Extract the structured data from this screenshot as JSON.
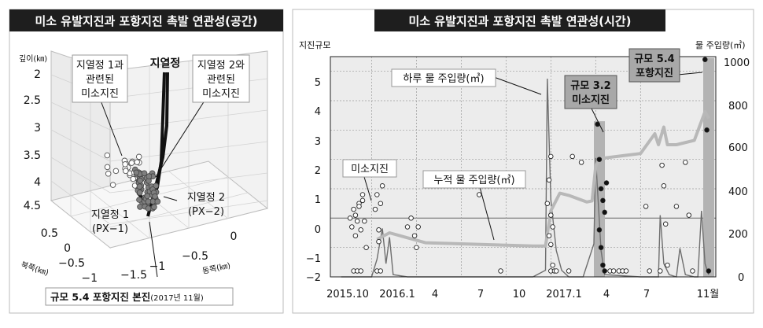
{
  "chart_data": [
    {
      "type": "scatter",
      "title": "미소 유발지진과 포항지진 촉발 연관성(공간)",
      "depth_label": "깊이(㎞)",
      "depth_ticks": [
        "2",
        "2.5",
        "3",
        "3.5",
        "4",
        "4.5"
      ],
      "north_label": "북쪽(㎞)",
      "north_ticks": [
        "0.5",
        "0",
        "−0.5",
        "−1"
      ],
      "east_label": "동쪽(㎞)",
      "east_ticks": [
        "−1.5",
        "−1",
        "−0.5",
        "0"
      ],
      "annotations": {
        "wells": "지열정",
        "px1_micro": [
          "지열정 1과",
          "관련된",
          "미소지진"
        ],
        "px2_micro": [
          "지열정 2와",
          "관련된",
          "미소지진"
        ],
        "px1": [
          "지열정 1",
          "(PX−1)"
        ],
        "px2": [
          "지열정 2",
          "(PX−2)"
        ],
        "mainshock_main": "규모 5.4 포항지진 본진",
        "mainshock_date": "(2017년 11월)"
      },
      "series": [
        {
          "name": "지열정 1과 관련된 미소지진",
          "color": "#ffffff",
          "count": 25
        },
        {
          "name": "지열정 2와 관련된 미소지진",
          "color": "#7f7f7f",
          "count": 60
        }
      ]
    },
    {
      "type": "line",
      "title": "미소 유발지진과 포항지진 촉발 연관성(시간)",
      "ylabel": "지진규모",
      "y2label": "물 주입량(㎥)",
      "ylim": [
        -2,
        5.5
      ],
      "y2lim": [
        0,
        1000
      ],
      "y_ticks": [
        "5",
        "4",
        "3",
        "2",
        "1",
        "0",
        "−1",
        "−2"
      ],
      "y2_ticks": [
        "1000",
        "800",
        "600",
        "400",
        "200",
        "0"
      ],
      "x_ticks": [
        "2015.10",
        "2016.1",
        "4",
        "7",
        "10",
        "2017.1",
        "4",
        "7",
        "11월"
      ],
      "annotations": {
        "daily_injection": "하루 물 주입량(㎥)",
        "cumulative_injection": "누적 물 주입량(㎥)",
        "micro_quakes": "미소지진",
        "m32": [
          "규모 3.2",
          "미소지진"
        ],
        "m54": [
          "규모 5.4",
          "포항지진"
        ]
      },
      "series": [
        {
          "name": "하루 물 주입량(㎥)",
          "x": [
            2015.83,
            2016.0,
            2016.03,
            2016.06,
            2016.08,
            2016.1,
            2016.12,
            2016.2,
            2016.4,
            2016.6,
            2016.9,
            2016.97,
            2016.98,
            2017.0,
            2017.03,
            2017.06,
            2017.1,
            2017.18,
            2017.24,
            2017.25,
            2017.28,
            2017.3,
            2017.5,
            2017.6,
            2017.61,
            2017.63,
            2017.66,
            2017.7,
            2017.72,
            2017.75,
            2017.8,
            2017.82,
            2017.84,
            2017.86,
            2017.88
          ],
          "y": [
            0,
            0,
            80,
            220,
            60,
            180,
            10,
            0,
            0,
            0,
            0,
            30,
            900,
            350,
            120,
            30,
            0,
            0,
            150,
            540,
            120,
            10,
            0,
            0,
            280,
            60,
            10,
            0,
            130,
            10,
            0,
            0,
            300,
            60,
            10
          ]
        },
        {
          "name": "누적 물 주입량(㎥)",
          "x": [
            2016.03,
            2016.1,
            2016.3,
            2016.5,
            2016.9,
            2016.97,
            2017.0,
            2017.05,
            2017.1,
            2017.2,
            2017.23,
            2017.25,
            2017.27,
            2017.3,
            2017.4,
            2017.5,
            2017.58,
            2017.6,
            2017.63,
            2017.65,
            2017.7,
            2017.8,
            2017.86,
            2017.88
          ],
          "y": [
            170,
            200,
            155,
            150,
            140,
            140,
            300,
            380,
            370,
            340,
            345,
            500,
            540,
            540,
            550,
            560,
            650,
            600,
            680,
            600,
            600,
            620,
            750,
            720
          ]
        },
        {
          "name": "미소지진",
          "x": [
            2015.88,
            2015.89,
            2015.9,
            2015.91,
            2015.92,
            2015.93,
            2015.94,
            2015.95,
            2015.96,
            2015.97,
            2015.9,
            2015.92,
            2015.94,
            2015.91,
            2015.93,
            2015.95,
            2016.02,
            2016.03,
            2016.04,
            2016.05,
            2016.06,
            2016.04,
            2016.03,
            2016.05,
            2016.2,
            2016.22,
            2016.24,
            2016.25,
            2016.26,
            2016.6,
            2016.72,
            2016.98,
            2016.99,
            2017.0,
            2017.01,
            2017.0,
            2016.99,
            2017.01,
            2017.0,
            2017.02,
            2017.0,
            2017.03,
            2017.1,
            2017.12,
            2017.17,
            2017.26,
            2017.27,
            2017.28,
            2017.29,
            2017.3,
            2017.27,
            2017.28,
            2017.29,
            2017.3,
            2017.31,
            2017.33,
            2017.35,
            2017.38,
            2017.4,
            2017.42,
            2017.53,
            2017.55,
            2017.61,
            2017.62,
            2017.63,
            2017.64,
            2017.65,
            2017.7,
            2017.75,
            2017.77,
            2017.79,
            2017.86,
            2017.87,
            2017.88
          ],
          "y": [
            0,
            -0.3,
            0.3,
            -0.6,
            -0.1,
            0.5,
            -0.4,
            0.8,
            -0.1,
            -1.0,
            -1.8,
            -1.8,
            -1.8,
            0.1,
            0.4,
            0.6,
            0.3,
            0.8,
            -0.4,
            0.5,
            1.1,
            -0.8,
            -1.8,
            -1.8,
            -0.3,
            0.0,
            -0.6,
            -1.0,
            -0.3,
            0.8,
            -1.8,
            0.5,
            1.3,
            0.1,
            -0.3,
            -0.9,
            -0.6,
            -1.6,
            -1.8,
            -1.8,
            2.1,
            -1.8,
            -1.8,
            2.1,
            1.9,
            3.2,
            2.0,
            1.0,
            0.6,
            0.2,
            -0.4,
            -1.0,
            -1.6,
            -1.8,
            1.2,
            -1.8,
            -1.8,
            -1.8,
            -1.8,
            -1.8,
            0.4,
            -1.8,
            -1.8,
            1.8,
            1.1,
            -0.2,
            -1.6,
            0.4,
            1.9,
            0.1,
            -1.8,
            5.4,
            3.0,
            -1.8
          ]
        }
      ]
    }
  ]
}
